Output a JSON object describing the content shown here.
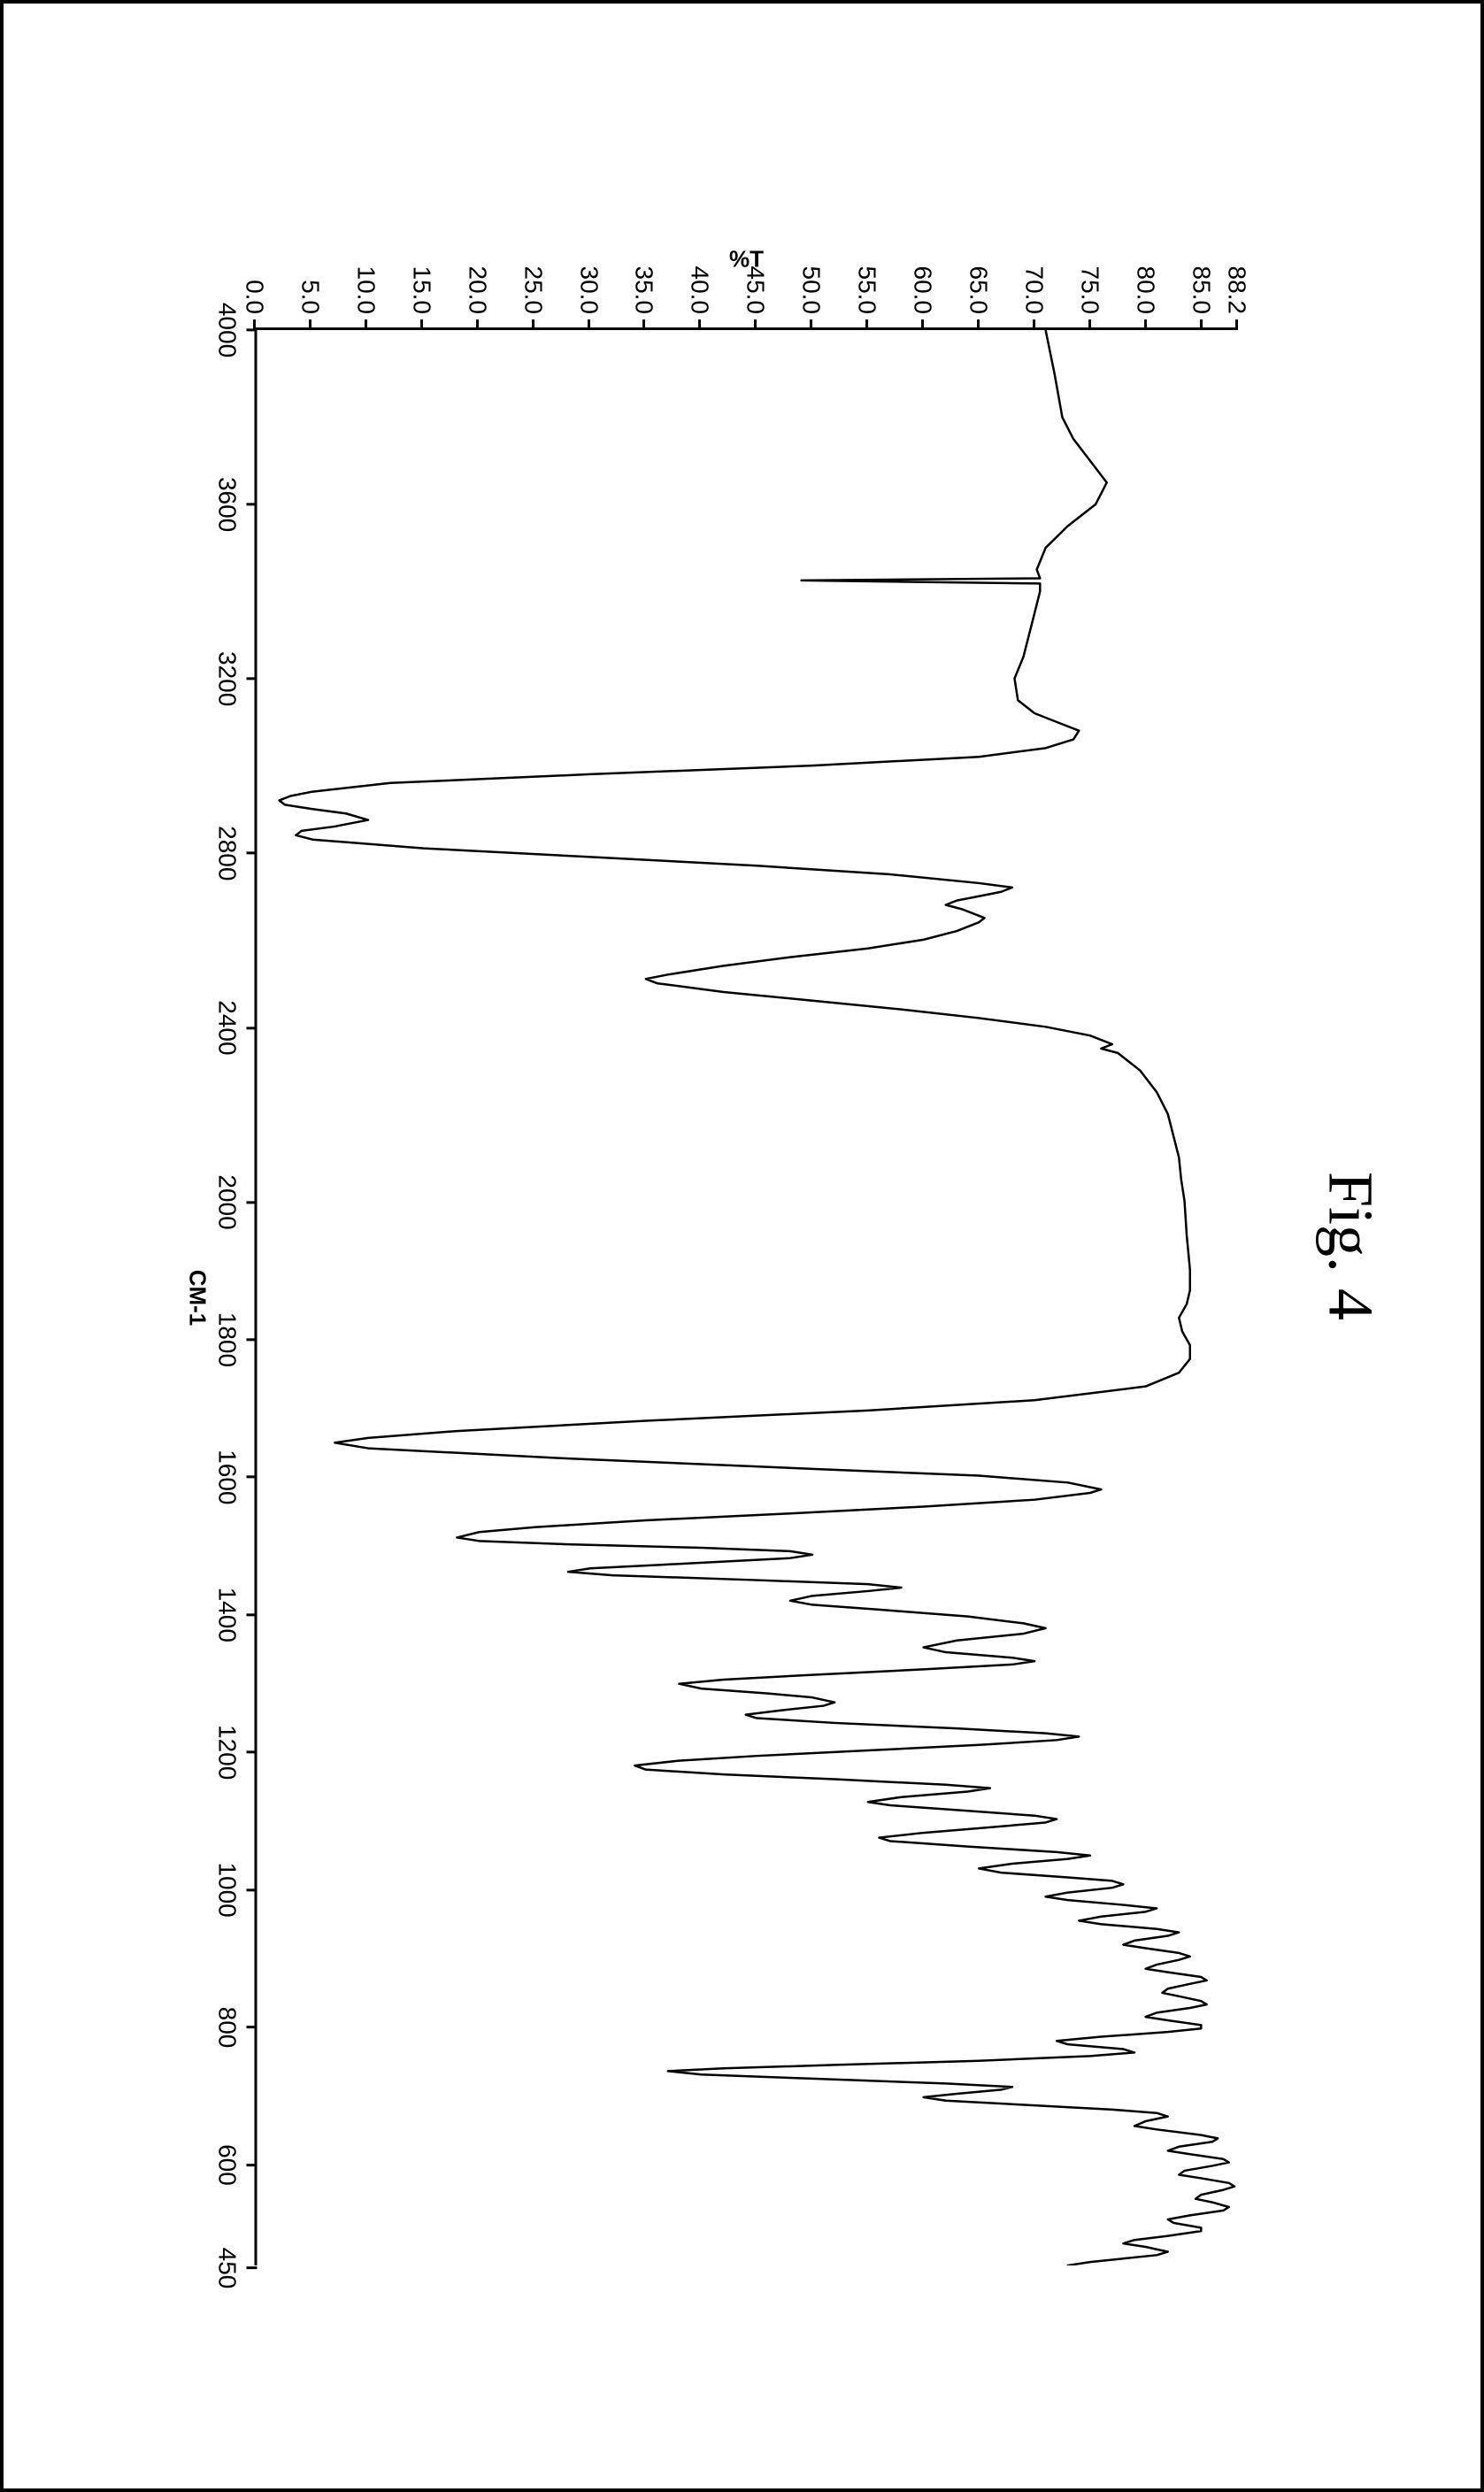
{
  "figure": {
    "title": "Fig. 4",
    "title_fontsize": 72,
    "title_font": "Times New Roman"
  },
  "chart": {
    "type": "line",
    "x_axis": {
      "label": "CM-1",
      "min": 450,
      "max": 4000,
      "reversed": true,
      "ticks": [
        4000,
        3600,
        3200,
        2800,
        2400,
        2000,
        1800,
        1600,
        1400,
        1200,
        1000,
        800,
        600,
        450
      ],
      "break_at": 2000,
      "label_fontsize": 26,
      "tick_fontsize": 28
    },
    "y_axis": {
      "label": "%T",
      "min": 0.0,
      "max": 88.2,
      "ticks": [
        88.2,
        85.0,
        80.0,
        75.0,
        70.0,
        65.0,
        60.0,
        55.0,
        50.0,
        45.0,
        40.0,
        35.0,
        30.0,
        25.0,
        20.0,
        15.0,
        10.0,
        5.0,
        0.0
      ],
      "label_fontsize": 26,
      "tick_fontsize": 28
    },
    "line_color": "#000000",
    "line_width": 2.5,
    "background_color": "#ffffff",
    "border_color": "#000000",
    "data": [
      [
        4000,
        71.0
      ],
      [
        3900,
        71.8
      ],
      [
        3800,
        72.5
      ],
      [
        3750,
        73.5
      ],
      [
        3700,
        75.0
      ],
      [
        3650,
        76.5
      ],
      [
        3600,
        75.5
      ],
      [
        3550,
        73.0
      ],
      [
        3500,
        71.0
      ],
      [
        3450,
        70.2
      ],
      [
        3430,
        70.5
      ],
      [
        3425,
        49.0
      ],
      [
        3418,
        70.5
      ],
      [
        3400,
        70.5
      ],
      [
        3350,
        70.0
      ],
      [
        3300,
        69.5
      ],
      [
        3250,
        69.0
      ],
      [
        3200,
        68.2
      ],
      [
        3150,
        68.5
      ],
      [
        3120,
        70.0
      ],
      [
        3100,
        72.0
      ],
      [
        3080,
        74.0
      ],
      [
        3060,
        73.5
      ],
      [
        3040,
        71.0
      ],
      [
        3020,
        65.0
      ],
      [
        3000,
        50.0
      ],
      [
        2980,
        30.0
      ],
      [
        2960,
        12.0
      ],
      [
        2940,
        5.0
      ],
      [
        2930,
        3.0
      ],
      [
        2920,
        2.0
      ],
      [
        2910,
        2.5
      ],
      [
        2900,
        5.0
      ],
      [
        2890,
        8.0
      ],
      [
        2875,
        10.0
      ],
      [
        2860,
        7.0
      ],
      [
        2850,
        4.0
      ],
      [
        2840,
        3.5
      ],
      [
        2830,
        5.0
      ],
      [
        2810,
        15.0
      ],
      [
        2790,
        30.0
      ],
      [
        2770,
        45.0
      ],
      [
        2750,
        57.0
      ],
      [
        2730,
        65.0
      ],
      [
        2720,
        68.0
      ],
      [
        2710,
        67.0
      ],
      [
        2700,
        65.0
      ],
      [
        2690,
        63.0
      ],
      [
        2680,
        62.0
      ],
      [
        2670,
        63.5
      ],
      [
        2650,
        65.5
      ],
      [
        2640,
        65.0
      ],
      [
        2620,
        63.0
      ],
      [
        2600,
        60.0
      ],
      [
        2580,
        55.0
      ],
      [
        2560,
        48.0
      ],
      [
        2540,
        42.0
      ],
      [
        2520,
        37.0
      ],
      [
        2510,
        35.0
      ],
      [
        2500,
        36.0
      ],
      [
        2480,
        42.0
      ],
      [
        2460,
        50.0
      ],
      [
        2440,
        58.0
      ],
      [
        2420,
        65.0
      ],
      [
        2400,
        71.0
      ],
      [
        2380,
        75.0
      ],
      [
        2360,
        77.0
      ],
      [
        2350,
        76.0
      ],
      [
        2340,
        77.5
      ],
      [
        2300,
        79.5
      ],
      [
        2250,
        81.0
      ],
      [
        2200,
        82.0
      ],
      [
        2150,
        82.5
      ],
      [
        2100,
        83.0
      ],
      [
        2050,
        83.2
      ],
      [
        2000,
        83.5
      ],
      [
        1950,
        83.7
      ],
      [
        1900,
        84.0
      ],
      [
        1870,
        84.0
      ],
      [
        1850,
        83.7
      ],
      [
        1830,
        83.0
      ],
      [
        1810,
        83.3
      ],
      [
        1790,
        84.0
      ],
      [
        1770,
        84.0
      ],
      [
        1750,
        83.0
      ],
      [
        1730,
        80.0
      ],
      [
        1710,
        70.0
      ],
      [
        1695,
        55.0
      ],
      [
        1680,
        35.0
      ],
      [
        1665,
        18.0
      ],
      [
        1655,
        10.0
      ],
      [
        1648,
        7.0
      ],
      [
        1640,
        10.0
      ],
      [
        1625,
        28.0
      ],
      [
        1610,
        50.0
      ],
      [
        1600,
        65.0
      ],
      [
        1590,
        73.0
      ],
      [
        1580,
        76.0
      ],
      [
        1575,
        75.0
      ],
      [
        1565,
        70.0
      ],
      [
        1555,
        60.0
      ],
      [
        1545,
        48.0
      ],
      [
        1535,
        35.0
      ],
      [
        1525,
        25.0
      ],
      [
        1518,
        20.0
      ],
      [
        1510,
        18.0
      ],
      [
        1505,
        20.0
      ],
      [
        1500,
        28.0
      ],
      [
        1495,
        40.0
      ],
      [
        1490,
        48.0
      ],
      [
        1485,
        50.0
      ],
      [
        1480,
        48.0
      ],
      [
        1470,
        36.0
      ],
      [
        1465,
        30.0
      ],
      [
        1460,
        28.0
      ],
      [
        1455,
        32.0
      ],
      [
        1448,
        45.0
      ],
      [
        1442,
        55.0
      ],
      [
        1437,
        58.0
      ],
      [
        1432,
        55.0
      ],
      [
        1425,
        50.0
      ],
      [
        1418,
        48.0
      ],
      [
        1412,
        50.0
      ],
      [
        1405,
        56.0
      ],
      [
        1395,
        64.0
      ],
      [
        1385,
        69.0
      ],
      [
        1378,
        71.0
      ],
      [
        1370,
        69.0
      ],
      [
        1360,
        63.0
      ],
      [
        1350,
        60.0
      ],
      [
        1343,
        62.0
      ],
      [
        1335,
        68.0
      ],
      [
        1330,
        70.0
      ],
      [
        1325,
        68.0
      ],
      [
        1318,
        60.0
      ],
      [
        1310,
        50.0
      ],
      [
        1303,
        42.0
      ],
      [
        1297,
        38.0
      ],
      [
        1290,
        40.0
      ],
      [
        1283,
        46.0
      ],
      [
        1277,
        50.0
      ],
      [
        1270,
        52.0
      ],
      [
        1265,
        51.0
      ],
      [
        1258,
        47.0
      ],
      [
        1252,
        44.0
      ],
      [
        1247,
        45.0
      ],
      [
        1240,
        52.0
      ],
      [
        1232,
        63.0
      ],
      [
        1225,
        71.0
      ],
      [
        1220,
        74.0
      ],
      [
        1215,
        72.0
      ],
      [
        1208,
        65.0
      ],
      [
        1200,
        55.0
      ],
      [
        1192,
        45.0
      ],
      [
        1185,
        38.0
      ],
      [
        1178,
        34.0
      ],
      [
        1172,
        35.0
      ],
      [
        1165,
        42.0
      ],
      [
        1158,
        52.0
      ],
      [
        1150,
        62.0
      ],
      [
        1145,
        66.0
      ],
      [
        1140,
        64.0
      ],
      [
        1132,
        58.0
      ],
      [
        1125,
        55.0
      ],
      [
        1120,
        57.0
      ],
      [
        1112,
        64.0
      ],
      [
        1105,
        70.0
      ],
      [
        1100,
        72.0
      ],
      [
        1095,
        71.0
      ],
      [
        1088,
        66.0
      ],
      [
        1080,
        60.0
      ],
      [
        1073,
        56.0
      ],
      [
        1068,
        57.0
      ],
      [
        1060,
        64.0
      ],
      [
        1052,
        72.0
      ],
      [
        1047,
        75.0
      ],
      [
        1042,
        73.0
      ],
      [
        1035,
        68.0
      ],
      [
        1028,
        65.0
      ],
      [
        1022,
        67.0
      ],
      [
        1015,
        73.0
      ],
      [
        1010,
        77.0
      ],
      [
        1005,
        78.0
      ],
      [
        1000,
        77.0
      ],
      [
        993,
        73.0
      ],
      [
        987,
        71.0
      ],
      [
        982,
        73.0
      ],
      [
        975,
        78.0
      ],
      [
        970,
        81.0
      ],
      [
        965,
        80.0
      ],
      [
        958,
        76.0
      ],
      [
        952,
        74.0
      ],
      [
        947,
        76.0
      ],
      [
        940,
        81.0
      ],
      [
        935,
        83.0
      ],
      [
        930,
        82.0
      ],
      [
        923,
        79.0
      ],
      [
        917,
        78.0
      ],
      [
        912,
        80.0
      ],
      [
        905,
        83.0
      ],
      [
        900,
        84.0
      ],
      [
        895,
        83.0
      ],
      [
        888,
        81.0
      ],
      [
        882,
        80.0
      ],
      [
        877,
        82.0
      ],
      [
        870,
        85.0
      ],
      [
        865,
        85.5
      ],
      [
        860,
        84.0
      ],
      [
        853,
        82.0
      ],
      [
        847,
        81.5
      ],
      [
        842,
        83.0
      ],
      [
        835,
        85.0
      ],
      [
        830,
        85.5
      ],
      [
        825,
        84.0
      ],
      [
        818,
        81.0
      ],
      [
        812,
        80.0
      ],
      [
        807,
        82.0
      ],
      [
        800,
        85.0
      ],
      [
        795,
        85.0
      ],
      [
        790,
        82.0
      ],
      [
        783,
        76.0
      ],
      [
        777,
        72.0
      ],
      [
        772,
        73.0
      ],
      [
        765,
        78.0
      ],
      [
        760,
        79.0
      ],
      [
        755,
        75.0
      ],
      [
        748,
        65.0
      ],
      [
        742,
        52.0
      ],
      [
        737,
        42.0
      ],
      [
        733,
        37.0
      ],
      [
        728,
        40.0
      ],
      [
        722,
        50.0
      ],
      [
        715,
        62.0
      ],
      [
        710,
        68.0
      ],
      [
        706,
        67.0
      ],
      [
        700,
        63.0
      ],
      [
        695,
        60.0
      ],
      [
        690,
        62.0
      ],
      [
        683,
        70.0
      ],
      [
        677,
        77.0
      ],
      [
        672,
        81.0
      ],
      [
        667,
        82.0
      ],
      [
        660,
        80.0
      ],
      [
        653,
        79.0
      ],
      [
        648,
        81.0
      ],
      [
        640,
        85.0
      ],
      [
        635,
        86.5
      ],
      [
        630,
        86.0
      ],
      [
        623,
        83.0
      ],
      [
        617,
        82.0
      ],
      [
        612,
        84.0
      ],
      [
        605,
        87.0
      ],
      [
        600,
        87.5
      ],
      [
        595,
        86.0
      ],
      [
        588,
        83.5
      ],
      [
        582,
        83.0
      ],
      [
        577,
        85.0
      ],
      [
        570,
        87.5
      ],
      [
        565,
        88.0
      ],
      [
        560,
        87.0
      ],
      [
        553,
        85.0
      ],
      [
        547,
        84.5
      ],
      [
        542,
        86.0
      ],
      [
        535,
        87.5
      ],
      [
        530,
        87.0
      ],
      [
        523,
        84.0
      ],
      [
        517,
        82.0
      ],
      [
        512,
        82.5
      ],
      [
        505,
        85.0
      ],
      [
        500,
        85.0
      ],
      [
        493,
        82.0
      ],
      [
        487,
        79.0
      ],
      [
        482,
        78.0
      ],
      [
        477,
        80.0
      ],
      [
        470,
        82.0
      ],
      [
        465,
        81.0
      ],
      [
        460,
        78.0
      ],
      [
        455,
        75.0
      ],
      [
        450,
        73.0
      ]
    ]
  }
}
